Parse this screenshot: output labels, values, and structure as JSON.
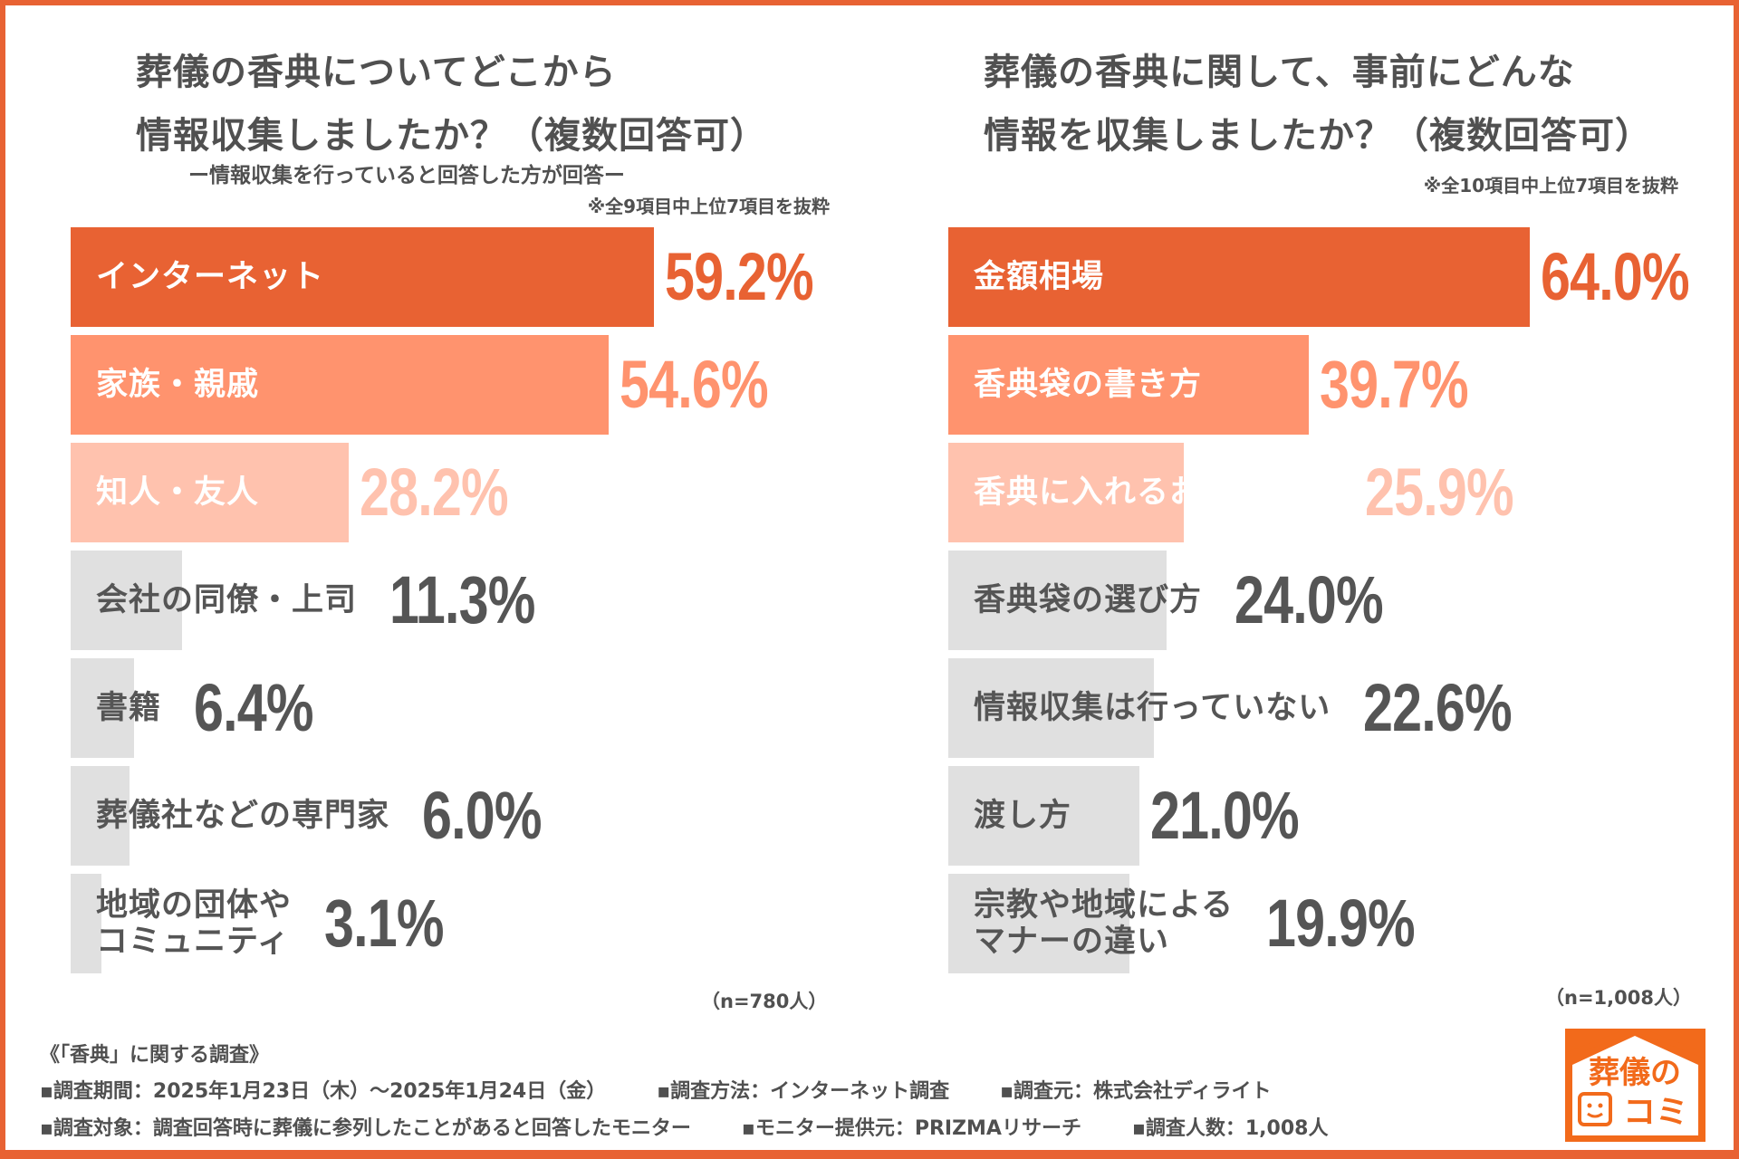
{
  "colors": {
    "accent": "#E86233",
    "medium": "#FF936E",
    "light": "#FFC2AE",
    "gray": "#E0E0E0",
    "text_dark": "#555555",
    "text_white": "#FFFFFF"
  },
  "chart_data": [
    {
      "type": "bar",
      "orientation": "horizontal",
      "title": "葬儀の香典についてどこから\n情報収集しましたか？（複数回答可）",
      "subtitle": "ー情報収集を行っていると回答した方が回答ー",
      "note": "※全9項目中上位7項目を抜粋",
      "sample": "（n=780人）",
      "unit": "%",
      "categories": [
        "インターネット",
        "家族・親戚",
        "知人・友人",
        "会社の同僚・上司",
        "書籍",
        "葬儀社などの専門家",
        "地域の団体や\nコミュニティ"
      ],
      "values": [
        59.2,
        54.6,
        28.2,
        11.3,
        6.4,
        6.0,
        3.1
      ],
      "labels": [
        "59.2%",
        "54.6%",
        "28.2%",
        "11.3%",
        "6.4%",
        "6.0%",
        "3.1%"
      ]
    },
    {
      "type": "bar",
      "orientation": "horizontal",
      "title": "葬儀の香典に関して、事前にどんな\n情報を収集しましたか？（複数回答可）",
      "note": "※全10項目中上位7項目を抜粋",
      "sample": "（n=1,008人）",
      "unit": "%",
      "categories": [
        "金額相場",
        "香典袋の書き方",
        "香典に入れるお札の向き",
        "香典袋の選び方",
        "情報収集は行っていない",
        "渡し方",
        "宗教や地域による\nマナーの違い"
      ],
      "values": [
        64.0,
        39.7,
        25.9,
        24.0,
        22.6,
        21.0,
        19.9
      ],
      "labels": [
        "64.0%",
        "39.7%",
        "25.9%",
        "24.0%",
        "22.6%",
        "21.0%",
        "19.9%"
      ]
    }
  ],
  "footer": {
    "heading": "《「香典」に関する調査》",
    "line1": [
      "▪調査期間：2025年1月23日（木）～2025年1月24日（金）",
      "▪調査方法：インターネット調査",
      "▪調査元：株式会社ディライト"
    ],
    "line2": [
      "▪調査対象：調査回答時に葬儀に参列したことがあると回答したモニター",
      "▪モニター提供元：PRIZMAリサーチ",
      "▪調査人数：1,008人"
    ]
  },
  "logo": {
    "text_top": "葬儀の",
    "text_bottom": "コミ",
    "icon": "house-speech-face-logo"
  }
}
